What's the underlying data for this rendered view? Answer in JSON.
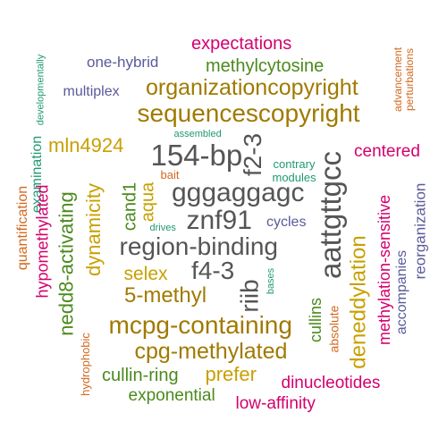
{
  "colors": {
    "gray": "#555555",
    "olive": "#a07a00",
    "gold": "#c8a000",
    "green": "#4b8a1c",
    "teal": "#1f9a72",
    "slate": "#5a5a9a",
    "magenta": "#d4006e",
    "orange": "#d2691e"
  },
  "words": [
    {
      "text": "expectations",
      "color": "magenta"
    },
    {
      "text": "one-hybrid",
      "color": "slate"
    },
    {
      "text": "methylcytosine",
      "color": "green"
    },
    {
      "text": "developmentally",
      "color": "teal"
    },
    {
      "text": "advancement",
      "color": "orange"
    },
    {
      "text": "perturbations",
      "color": "orange"
    },
    {
      "text": "multiplex",
      "color": "slate"
    },
    {
      "text": "organizationcopyright",
      "color": "olive"
    },
    {
      "text": "sequencescopyright",
      "color": "olive"
    },
    {
      "text": "quantification",
      "color": "orange"
    },
    {
      "text": "examination",
      "color": "teal"
    },
    {
      "text": "assembled",
      "color": "teal"
    },
    {
      "text": "mln4924",
      "color": "gold"
    },
    {
      "text": "154-bp",
      "color": "gray"
    },
    {
      "text": "f2-3",
      "color": "gray"
    },
    {
      "text": "aattgttgcc",
      "color": "gray"
    },
    {
      "text": "centered",
      "color": "magenta"
    },
    {
      "text": "contrary",
      "color": "teal"
    },
    {
      "text": "modules",
      "color": "teal"
    },
    {
      "text": "bait",
      "color": "orange"
    },
    {
      "text": "hypomethylated",
      "color": "magenta"
    },
    {
      "text": "nedd8-activating",
      "color": "green"
    },
    {
      "text": "dynamicity",
      "color": "gold"
    },
    {
      "text": "cand1",
      "color": "green"
    },
    {
      "text": "aqua",
      "color": "gold"
    },
    {
      "text": "gggaggagc",
      "color": "gray"
    },
    {
      "text": "methylation-sensitive",
      "color": "magenta"
    },
    {
      "text": "reorganization",
      "color": "slate"
    },
    {
      "text": "znf91",
      "color": "gray"
    },
    {
      "text": "drives",
      "color": "teal"
    },
    {
      "text": "cycles",
      "color": "slate"
    },
    {
      "text": "region-binding",
      "color": "gray"
    },
    {
      "text": "accompanies",
      "color": "slate"
    },
    {
      "text": "selex",
      "color": "gold"
    },
    {
      "text": "f4-3",
      "color": "gray"
    },
    {
      "text": "bases",
      "color": "teal"
    },
    {
      "text": "deneddylation",
      "color": "gold"
    },
    {
      "text": "riib",
      "color": "gray"
    },
    {
      "text": "5-methyl",
      "color": "olive"
    },
    {
      "text": "cullins",
      "color": "green"
    },
    {
      "text": "absolute",
      "color": "orange"
    },
    {
      "text": "mcpg-containing",
      "color": "olive"
    },
    {
      "text": "hydrophobic",
      "color": "orange"
    },
    {
      "text": "cpg-methylated",
      "color": "olive"
    },
    {
      "text": "cullin-ring",
      "color": "green"
    },
    {
      "text": "prefer",
      "color": "gold"
    },
    {
      "text": "dinucleotides",
      "color": "magenta"
    },
    {
      "text": "exponential",
      "color": "green"
    },
    {
      "text": "low-affinity",
      "color": "magenta"
    }
  ]
}
